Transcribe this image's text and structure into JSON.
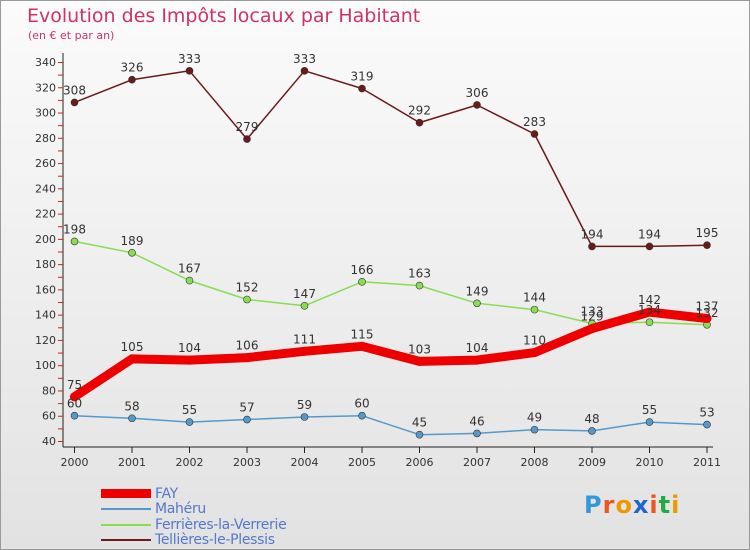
{
  "chart_data": {
    "type": "line",
    "title": "Evolution des Impôts locaux par Habitant",
    "subtitle": "(en € et par an)",
    "x": [
      "2000",
      "2001",
      "2002",
      "2003",
      "2004",
      "2005",
      "2006",
      "2007",
      "2008",
      "2009",
      "2010",
      "2011"
    ],
    "ylim": [
      40,
      340
    ],
    "yticks": [
      40,
      60,
      80,
      100,
      120,
      140,
      160,
      180,
      200,
      220,
      240,
      260,
      280,
      300,
      320,
      340
    ],
    "grid": false,
    "legend_position": "bottom-left",
    "series": [
      {
        "name": "Tellières-le-Plessis",
        "color": "#6b1a1a",
        "values": [
          308,
          326,
          333,
          279,
          333,
          319,
          292,
          306,
          283,
          194,
          194,
          195
        ]
      },
      {
        "name": "Ferrières-la-Verrerie",
        "color": "#88dd55",
        "values": [
          198,
          189,
          167,
          152,
          147,
          166,
          163,
          149,
          144,
          133,
          134,
          132
        ]
      },
      {
        "name": "Mahéru",
        "color": "#5599cc",
        "values": [
          60,
          58,
          55,
          57,
          59,
          60,
          45,
          46,
          49,
          48,
          55,
          53
        ]
      },
      {
        "name": "FAY",
        "color": "#ee0000",
        "values": [
          75,
          105,
          104,
          106,
          111,
          115,
          103,
          104,
          110,
          129,
          142,
          137
        ]
      }
    ]
  },
  "legend": [
    {
      "name": "FAY",
      "color": "#ee0000"
    },
    {
      "name": "Mahéru",
      "color": "#5599cc"
    },
    {
      "name": "Ferrières-la-Verrerie",
      "color": "#88dd55"
    },
    {
      "name": "Tellières-le-Plessis",
      "color": "#6b1a1a"
    }
  ],
  "brand": {
    "letters": [
      "P",
      "r",
      "o",
      "x",
      "i",
      "t",
      "i"
    ],
    "colors": [
      "#3399dd",
      "#ee5522",
      "#ee9900",
      "#2266cc",
      "#ee5522",
      "#22aa44",
      "#ee9900"
    ]
  }
}
